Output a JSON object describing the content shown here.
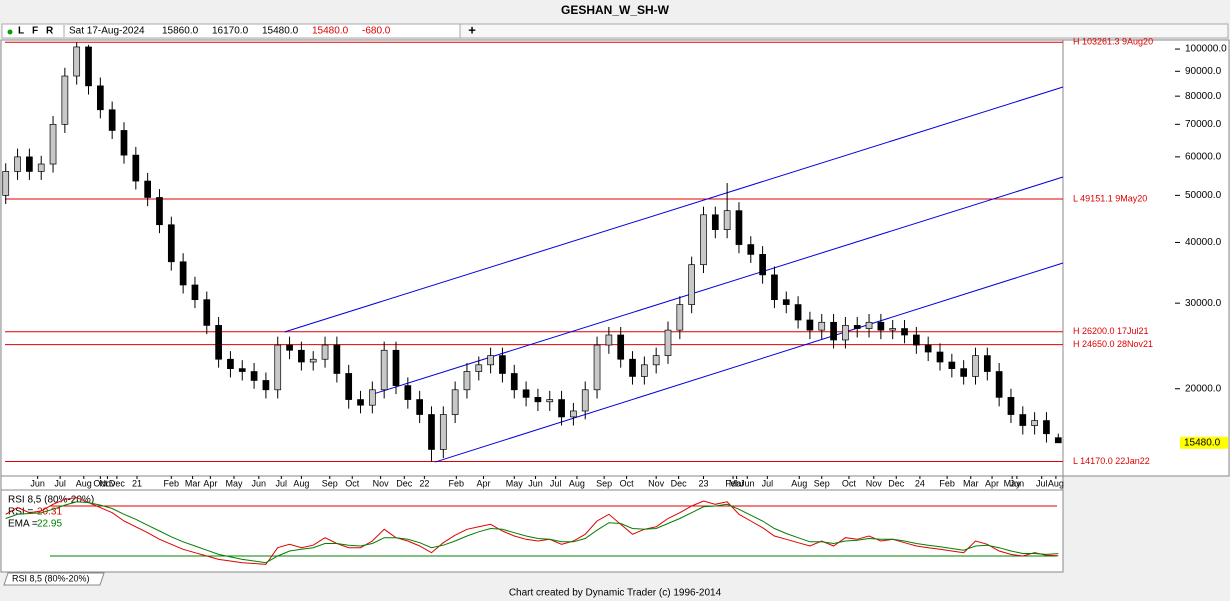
{
  "window_title": "GESHAN_W_SH-W",
  "toolbar": {
    "flags": [
      "L",
      "F",
      "R"
    ],
    "date": "Sat 17-Aug-2024",
    "open": "15860.0",
    "high": "16170.0",
    "low": "15480.0",
    "close": "15480.0",
    "change": "-680.0",
    "add": "+"
  },
  "chart_data": {
    "type": "candlestick",
    "log_scale": true,
    "ylim": [
      13290,
      103400
    ],
    "xlim": [
      -0.4,
      89.4
    ],
    "up_color": "#c8c8c8",
    "down_color": "#000000",
    "yticks": [
      {
        "value": 100000,
        "label": "100000.0"
      },
      {
        "value": 90000,
        "label": "90000.0"
      },
      {
        "value": 80000,
        "label": "80000.0"
      },
      {
        "value": 70000,
        "label": "70000.0"
      },
      {
        "value": 60000,
        "label": "60000.0"
      },
      {
        "value": 50000,
        "label": "50000.0"
      },
      {
        "value": 40000,
        "label": "40000.0"
      },
      {
        "value": 30000,
        "label": "30000.0"
      },
      {
        "value": 20000,
        "label": "20000.0"
      }
    ],
    "xticks": [
      {
        "value": 2.7,
        "label": "Jun"
      },
      {
        "value": 4.6,
        "label": "Jul"
      },
      {
        "value": 6.6,
        "label": "Aug"
      },
      {
        "value": 8.0,
        "label": "Oct"
      },
      {
        "value": 8.6,
        "label": "Nov"
      },
      {
        "value": 9.4,
        "label": "Dec"
      },
      {
        "value": 11.1,
        "label": "21"
      },
      {
        "value": 14.0,
        "label": "Feb"
      },
      {
        "value": 15.8,
        "label": "Mar"
      },
      {
        "value": 17.3,
        "label": "Apr"
      },
      {
        "value": 19.3,
        "label": "May"
      },
      {
        "value": 21.4,
        "label": "Jun"
      },
      {
        "value": 23.3,
        "label": "Jul"
      },
      {
        "value": 25.0,
        "label": "Aug"
      },
      {
        "value": 27.4,
        "label": "Sep"
      },
      {
        "value": 29.3,
        "label": "Oct"
      },
      {
        "value": 31.7,
        "label": "Nov"
      },
      {
        "value": 33.7,
        "label": "Dec"
      },
      {
        "value": 35.4,
        "label": "22"
      },
      {
        "value": 38.1,
        "label": "Feb"
      },
      {
        "value": 40.4,
        "label": "Apr"
      },
      {
        "value": 43.0,
        "label": "May"
      },
      {
        "value": 44.8,
        "label": "Jun"
      },
      {
        "value": 46.5,
        "label": "Jul"
      },
      {
        "value": 48.3,
        "label": "Aug"
      },
      {
        "value": 50.6,
        "label": "Sep"
      },
      {
        "value": 52.5,
        "label": "Oct"
      },
      {
        "value": 55.0,
        "label": "Nov"
      },
      {
        "value": 56.9,
        "label": "Dec"
      },
      {
        "value": 59.0,
        "label": "23"
      },
      {
        "value": 61.5,
        "label": "Feb"
      },
      {
        "value": 61.8,
        "label": "Mar"
      },
      {
        "value": 62.7,
        "label": "Jun"
      },
      {
        "value": 64.4,
        "label": "Jul"
      },
      {
        "value": 67.1,
        "label": "Aug"
      },
      {
        "value": 69.0,
        "label": "Sep"
      },
      {
        "value": 71.3,
        "label": "Oct"
      },
      {
        "value": 73.4,
        "label": "Nov"
      },
      {
        "value": 75.3,
        "label": "Dec"
      },
      {
        "value": 77.3,
        "label": "24"
      },
      {
        "value": 79.6,
        "label": "Feb"
      },
      {
        "value": 81.6,
        "label": "Mar"
      },
      {
        "value": 83.4,
        "label": "Apr"
      },
      {
        "value": 85.1,
        "label": "May"
      },
      {
        "value": 85.5,
        "label": "Jun"
      },
      {
        "value": 87.6,
        "label": "Jul"
      },
      {
        "value": 88.8,
        "label": "Aug"
      }
    ],
    "open": [
      50000,
      56000,
      60000,
      56000,
      58000,
      70000,
      88000,
      101000,
      84000,
      75000,
      68000,
      60500,
      53500,
      49500,
      43500,
      36500,
      32700,
      30500,
      27000,
      23000,
      22000,
      21700,
      20800,
      19900,
      24600,
      24000,
      22700,
      23000,
      24600,
      21500,
      19000,
      18500,
      19900,
      24000,
      20300,
      19000,
      17700,
      15000,
      17700,
      19900,
      21700,
      22400,
      23400,
      21500,
      19900,
      19200,
      18800,
      19000,
      17500,
      18000,
      19900,
      24600,
      25800,
      23000,
      21200,
      22400,
      23400,
      26400,
      29800,
      36000,
      45600,
      42500,
      46500,
      39600,
      37800,
      34300,
      30500,
      29800,
      27700,
      26400,
      27400,
      25200,
      27000,
      26600,
      27400,
      26400,
      26600,
      25800,
      24600,
      23800,
      22700,
      22000,
      21200,
      23400,
      21700,
      19200,
      17700,
      16800,
      17200,
      15860
    ],
    "high": [
      58200,
      62400,
      62400,
      60300,
      72800,
      91500,
      103261.3,
      102000,
      87400,
      78000,
      70700,
      62900,
      55600,
      51500,
      45200,
      38000,
      34000,
      31700,
      28100,
      23900,
      22900,
      22600,
      21600,
      25600,
      25600,
      25000,
      23900,
      25600,
      25600,
      22400,
      19800,
      20700,
      25000,
      25000,
      21100,
      19800,
      18400,
      18400,
      20700,
      22600,
      23300,
      24300,
      24300,
      22400,
      20700,
      20000,
      19800,
      19800,
      18700,
      20700,
      25600,
      26800,
      26800,
      23900,
      23300,
      24300,
      27500,
      31000,
      37400,
      47400,
      47400,
      53000,
      48400,
      41200,
      39300,
      35700,
      31700,
      31000,
      28800,
      28500,
      28500,
      28100,
      28100,
      28500,
      28500,
      27700,
      27700,
      26800,
      25600,
      24800,
      23600,
      22900,
      24300,
      24300,
      22600,
      20000,
      18400,
      17900,
      17900,
      16170
    ],
    "low": [
      48000,
      53800,
      53800,
      53800,
      55700,
      67200,
      84500,
      80600,
      72000,
      65300,
      58100,
      51400,
      47500,
      41800,
      35000,
      31400,
      29300,
      25900,
      22100,
      21100,
      20800,
      20000,
      19100,
      19100,
      23000,
      21800,
      21800,
      22100,
      20600,
      18200,
      17800,
      17800,
      19100,
      19500,
      18200,
      17000,
      14170,
      14400,
      17000,
      19100,
      20800,
      21500,
      20600,
      19100,
      18400,
      18000,
      18000,
      16800,
      16800,
      17300,
      19100,
      23600,
      22100,
      20400,
      20400,
      21500,
      22500,
      25300,
      28600,
      34600,
      40800,
      40800,
      38000,
      36300,
      32900,
      29300,
      28600,
      26600,
      25300,
      25300,
      24200,
      24200,
      25500,
      25500,
      25300,
      25300,
      24800,
      23600,
      22800,
      21800,
      21100,
      20400,
      20400,
      20800,
      18400,
      17000,
      16100,
      16100,
      15500,
      15480
    ],
    "close": [
      56000,
      60000,
      56000,
      58000,
      70000,
      88000,
      101000,
      84000,
      75000,
      68000,
      60500,
      53500,
      49500,
      43500,
      36500,
      32700,
      30500,
      27000,
      23000,
      22000,
      21700,
      20800,
      19900,
      24600,
      24000,
      22700,
      23000,
      24600,
      21500,
      19000,
      18500,
      19900,
      24000,
      20300,
      19000,
      17700,
      15000,
      17700,
      19900,
      21700,
      22400,
      23400,
      21500,
      19900,
      19200,
      18800,
      19000,
      17500,
      18000,
      19900,
      24600,
      25800,
      23000,
      21200,
      22400,
      23400,
      26400,
      29800,
      36000,
      45600,
      42500,
      46500,
      39600,
      37800,
      34300,
      30500,
      29800,
      27700,
      26400,
      27400,
      25200,
      27000,
      26600,
      27400,
      26400,
      26600,
      25800,
      24600,
      23800,
      22700,
      22000,
      21200,
      23400,
      21700,
      19200,
      17700,
      16800,
      17200,
      16160,
      15480
    ],
    "levels": [
      {
        "value": 103261.3,
        "label": "H 103261.3 9Aug20"
      },
      {
        "value": 49151.1,
        "label": "L 49151.1 9May20"
      },
      {
        "value": 26200.0,
        "label": "H 26200.0 17Jul21"
      },
      {
        "value": 24650.0,
        "label": "H 24650.0 28Nov21"
      },
      {
        "value": 14170.0,
        "label": "L 14170.0 22Jan22"
      }
    ],
    "level_color": "#e00000",
    "trend_color": "#0000e0",
    "trend_lines": [
      {
        "x": [
          23.6,
          89.4
        ],
        "y": [
          26180,
          83530
        ]
      },
      {
        "x": [
          30.8,
          89.4
        ],
        "y": [
          19410,
          54540
        ]
      },
      {
        "x": [
          36.3,
          89.4
        ],
        "y": [
          14130,
          36290
        ]
      }
    ],
    "last_price": {
      "value": 15480,
      "label": "15480.0"
    },
    "indicator": {
      "title": "RSI 8,5 (80%-20%)",
      "tab": "RSI 8,5 (80%-20%)",
      "ylim": [
        0,
        100
      ],
      "upper": 80,
      "lower": 20,
      "series": [
        {
          "name": "RSI =",
          "color": "#e00000",
          "values": [
            70,
            78,
            72,
            74,
            82,
            88,
            90,
            84,
            78,
            72,
            62,
            55,
            48,
            40,
            34,
            28,
            24,
            20,
            16,
            14,
            12,
            11,
            10,
            30,
            34,
            30,
            33,
            42,
            35,
            30,
            30,
            38,
            52,
            42,
            38,
            32,
            24,
            36,
            45,
            52,
            55,
            58,
            50,
            44,
            40,
            38,
            40,
            34,
            38,
            46,
            62,
            70,
            58,
            46,
            52,
            55,
            65,
            72,
            80,
            86,
            82,
            85,
            70,
            62,
            54,
            44,
            40,
            36,
            32,
            38,
            32,
            42,
            40,
            44,
            38,
            40,
            36,
            32,
            30,
            28,
            26,
            24,
            38,
            34,
            26,
            22,
            20,
            24,
            21,
            20.31
          ]
        },
        {
          "name": "EMA =",
          "color": "#008000",
          "values": [
            65,
            70,
            71,
            72,
            76,
            81,
            85,
            84,
            81,
            77,
            70,
            64,
            57,
            50,
            43,
            37,
            32,
            27,
            22,
            19,
            16,
            14,
            12,
            20,
            26,
            28,
            30,
            35,
            35,
            33,
            32,
            35,
            42,
            42,
            40,
            36,
            30,
            33,
            38,
            44,
            49,
            53,
            52,
            48,
            44,
            41,
            40,
            37,
            37,
            41,
            51,
            60,
            59,
            53,
            52,
            53,
            59,
            65,
            72,
            79,
            80,
            82,
            76,
            69,
            62,
            53,
            47,
            42,
            37,
            37,
            35,
            38,
            39,
            41,
            40,
            40,
            38,
            35,
            33,
            31,
            29,
            27,
            32,
            33,
            30,
            26,
            23,
            23,
            22,
            22.95
          ]
        }
      ]
    }
  },
  "footer": "Chart created by Dynamic Trader  (c) 1996-2014"
}
